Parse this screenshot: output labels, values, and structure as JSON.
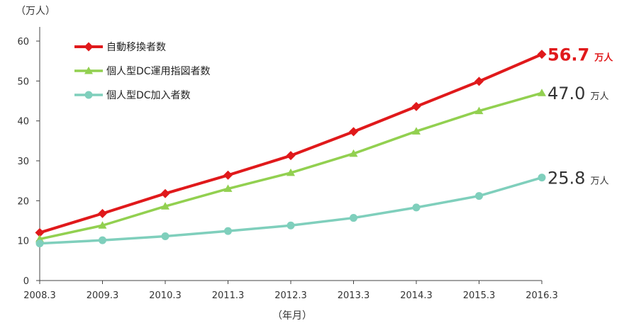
{
  "chart_data": {
    "type": "line",
    "y_unit_label": "（万人）",
    "x_unit_label": "（年月）",
    "categories": [
      "2008.3",
      "2009.3",
      "2010.3",
      "2011.3",
      "2012.3",
      "2013.3",
      "2014.3",
      "2015.3",
      "2016.3"
    ],
    "ylim": [
      0,
      60
    ],
    "yticks": [
      0,
      10,
      20,
      30,
      40,
      50,
      60
    ],
    "grid": false,
    "legend_position": "top-left",
    "series": [
      {
        "name": "自動移換者数",
        "color": "#e0191b",
        "marker": "diamond",
        "values": [
          12.0,
          16.8,
          21.8,
          26.4,
          31.3,
          37.3,
          43.6,
          49.9,
          56.7
        ],
        "end_value": "56.7",
        "end_unit": "万人",
        "end_color": "#e0191b"
      },
      {
        "name": "個人型DC運用指図者数",
        "color": "#92d050",
        "marker": "triangle",
        "values": [
          10.4,
          13.8,
          18.6,
          23.0,
          27.0,
          31.8,
          37.4,
          42.5,
          47.0
        ],
        "end_value": "47.0",
        "end_unit": "万人",
        "end_color": "#333333"
      },
      {
        "name": "個人型DC加入者数",
        "color": "#7fcfbc",
        "marker": "circle",
        "values": [
          9.3,
          10.1,
          11.1,
          12.4,
          13.8,
          15.7,
          18.3,
          21.2,
          25.8
        ],
        "end_value": "25.8",
        "end_unit": "万人",
        "end_color": "#333333"
      }
    ]
  }
}
